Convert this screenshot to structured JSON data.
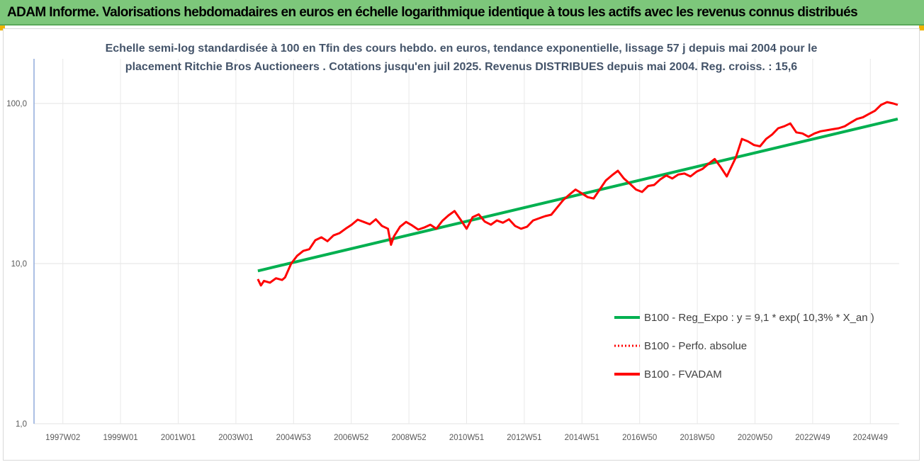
{
  "header": {
    "title": "ADAM Informe. Valorisations hebdomadaires en euros en échelle logarithmique identique à tous les actifs avec les revenus connus distribués"
  },
  "colors": {
    "banner": "#7dc77b",
    "trend": "#00b050",
    "perf": "#ff0000",
    "fvadam": "#ff0000",
    "subtitle": "#44546a"
  },
  "chart_data": {
    "type": "line",
    "subtitle": [
      "Echelle semi-log standardisée à 100 en Tfin des cours hebdo. en euros, tendance exponentielle, lissage 57 j depuis mai 2004 pour le",
      "placement Ritchie Bros Auctioneers . Cotations jusqu'en juil 2025. Revenus DISTRIBUES depuis mai 2004. Reg. croiss. : 15,6"
    ],
    "y_scale": "log",
    "ylim": [
      1,
      100
    ],
    "y_ticks": [
      "1,0",
      "10,0",
      "100,0"
    ],
    "y_tick_values": [
      1,
      10,
      100
    ],
    "x_ticks": [
      "1997W02",
      "1999W01",
      "2001W01",
      "2003W01",
      "2004W53",
      "2006W52",
      "2008W52",
      "2010W51",
      "2012W51",
      "2014W51",
      "2016W50",
      "2018W50",
      "2020W50",
      "2022W49",
      "2024W49"
    ],
    "xlim": [
      1997.0,
      2025.6
    ],
    "grid": "vertical",
    "legend_position": "right",
    "series": [
      {
        "name": "B100 - Reg_Expo : y = 9,1 * exp( 10,3% *  X_an )",
        "style": "solid",
        "color": "#00b050",
        "x": [
          2004.4,
          2025.55
        ],
        "values": [
          9.0,
          80.0
        ]
      },
      {
        "name": "B100 - Perfo. absolue",
        "style": "dotted",
        "color": "#ff0000",
        "x": [],
        "values": []
      },
      {
        "name": "B100 - FVADAM",
        "style": "solid",
        "color": "#ff0000",
        "x": [
          2004.4,
          2004.5,
          2004.6,
          2004.8,
          2005.0,
          2005.2,
          2005.3,
          2005.5,
          2005.7,
          2005.9,
          2006.1,
          2006.3,
          2006.5,
          2006.7,
          2006.9,
          2007.1,
          2007.3,
          2007.5,
          2007.7,
          2007.9,
          2008.1,
          2008.3,
          2008.5,
          2008.7,
          2008.8,
          2008.9,
          2009.1,
          2009.3,
          2009.5,
          2009.7,
          2009.9,
          2010.1,
          2010.3,
          2010.5,
          2010.7,
          2010.9,
          2011.1,
          2011.3,
          2011.5,
          2011.7,
          2011.9,
          2012.1,
          2012.3,
          2012.5,
          2012.7,
          2012.9,
          2013.1,
          2013.3,
          2013.5,
          2013.7,
          2013.9,
          2014.1,
          2014.3,
          2014.5,
          2014.7,
          2014.9,
          2015.1,
          2015.3,
          2015.5,
          2015.7,
          2015.9,
          2016.1,
          2016.3,
          2016.5,
          2016.7,
          2016.9,
          2017.1,
          2017.3,
          2017.5,
          2017.7,
          2017.9,
          2018.1,
          2018.3,
          2018.5,
          2018.7,
          2018.9,
          2019.1,
          2019.3,
          2019.5,
          2019.7,
          2019.9,
          2020.1,
          2020.2,
          2020.4,
          2020.6,
          2020.8,
          2021.0,
          2021.2,
          2021.4,
          2021.6,
          2021.8,
          2022.0,
          2022.2,
          2022.4,
          2022.6,
          2022.8,
          2023.0,
          2023.2,
          2023.4,
          2023.6,
          2023.8,
          2024.0,
          2024.2,
          2024.4,
          2024.6,
          2024.8,
          2025.0,
          2025.2,
          2025.4,
          2025.55
        ],
        "values": [
          8.0,
          7.3,
          7.8,
          7.6,
          8.1,
          7.9,
          8.2,
          10.0,
          11.2,
          12.0,
          12.3,
          14.0,
          14.6,
          13.8,
          15.0,
          15.5,
          16.5,
          17.5,
          18.8,
          18.2,
          17.6,
          18.9,
          17.2,
          16.5,
          13.1,
          14.8,
          17.0,
          18.2,
          17.3,
          16.3,
          16.8,
          17.5,
          16.5,
          18.5,
          20.0,
          21.3,
          18.8,
          16.5,
          19.5,
          20.3,
          18.3,
          17.5,
          18.6,
          18.0,
          18.9,
          17.2,
          16.5,
          17.0,
          18.6,
          19.2,
          19.8,
          20.2,
          22.5,
          25.0,
          27.0,
          29.0,
          27.5,
          26.0,
          25.5,
          29.0,
          33.0,
          35.5,
          38.0,
          34.0,
          31.5,
          29.0,
          28.0,
          30.5,
          31.0,
          33.5,
          35.5,
          34.0,
          36.0,
          36.5,
          35.0,
          37.5,
          39.0,
          42.0,
          45.0,
          40.0,
          35.0,
          42.0,
          46.0,
          60.0,
          58.0,
          55.0,
          54.0,
          60.0,
          64.0,
          70.0,
          72.0,
          75.0,
          66.0,
          65.0,
          62.0,
          65.0,
          67.0,
          68.0,
          69.0,
          70.0,
          72.0,
          76.0,
          80.0,
          82.0,
          86.0,
          90.0,
          98.0,
          102.0,
          100.0,
          98.0
        ]
      }
    ]
  }
}
